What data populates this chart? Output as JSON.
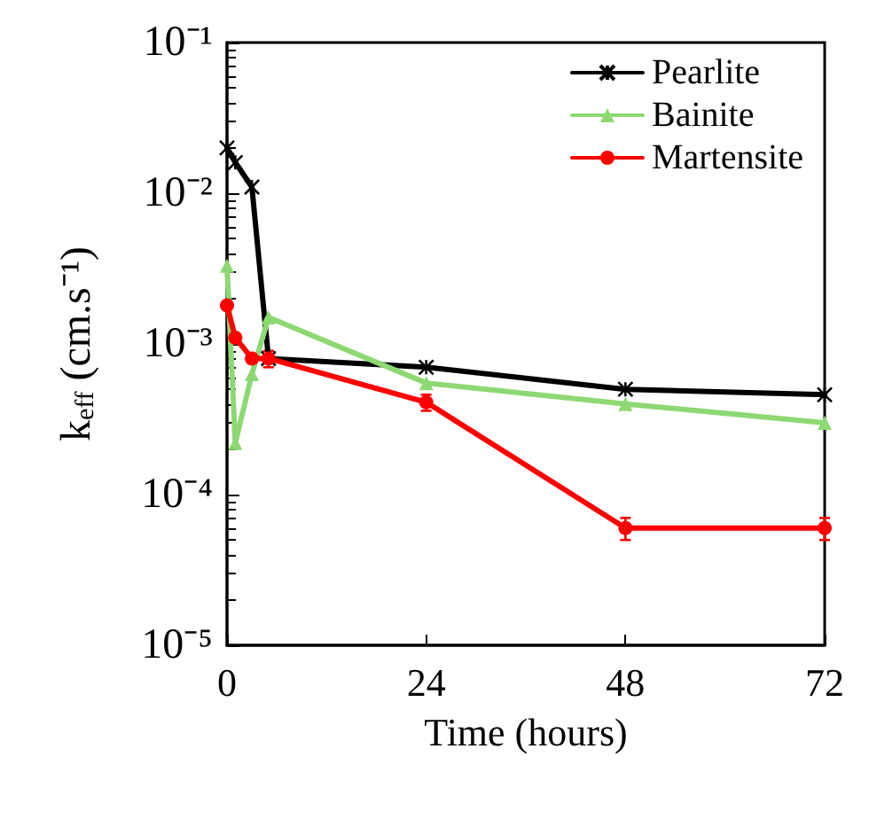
{
  "chart_data": {
    "type": "line",
    "xlabel": "Time (hours)",
    "ylabel": "k$_{eff}$ (cm.s⁻¹)",
    "log": "y",
    "grid": false,
    "legend": "top right",
    "xlim": [
      0,
      72
    ],
    "xticks": [
      0,
      24,
      48,
      72
    ],
    "ylim": [
      1e-05,
      0.1
    ],
    "yticks": [
      {
        "value": 1e-05,
        "label": "10⁻⁵"
      },
      {
        "value": 0.0001,
        "label": "10⁻⁴"
      },
      {
        "value": 0.001,
        "label": "10⁻³"
      },
      {
        "value": 0.01,
        "label": "10⁻²"
      },
      {
        "value": 0.1,
        "label": "10⁻¹"
      }
    ],
    "x": [
      0,
      1,
      3,
      5,
      24,
      48,
      72
    ],
    "series": [
      {
        "name": "Pearlite",
        "color": "#000000",
        "marker": "cross",
        "values": [
          0.02,
          0.016,
          0.011,
          0.0008,
          0.0007,
          0.0005,
          0.00046
        ]
      },
      {
        "name": "Bainite",
        "color": "#8ed873",
        "marker": "triangle",
        "values": [
          0.0033,
          0.00022,
          0.00063,
          0.0015,
          0.00055,
          0.0004,
          0.0003
        ]
      },
      {
        "name": "Martensite",
        "color": "#ff0000",
        "marker": "circle",
        "values": [
          0.0018,
          0.0011,
          0.0008,
          0.0008,
          0.00041,
          6e-05,
          6e-05
        ],
        "errors": [
          null,
          null,
          null,
          0.0001,
          5e-05,
          1e-05,
          1e-05
        ]
      }
    ]
  }
}
